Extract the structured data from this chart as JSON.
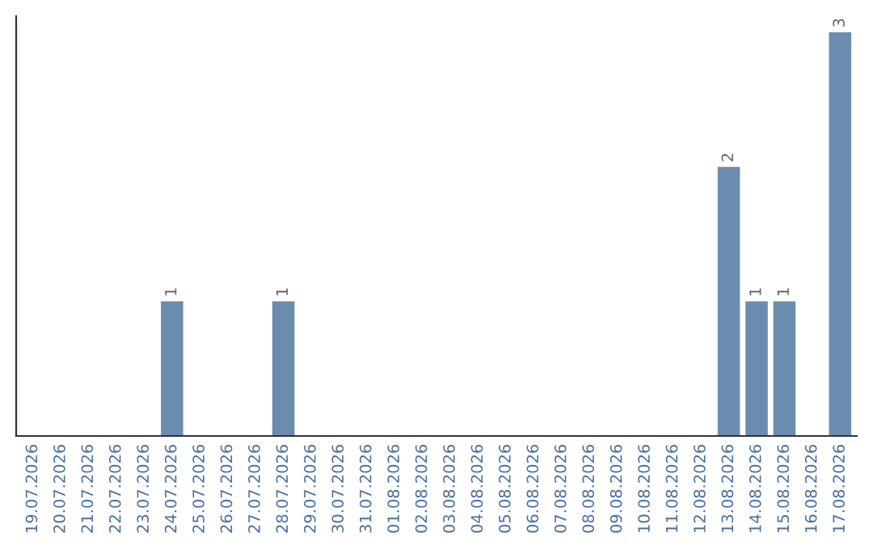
{
  "chart_data": {
    "type": "bar",
    "categories": [
      "19.07.2026",
      "20.07.2026",
      "21.07.2026",
      "22.07.2026",
      "23.07.2026",
      "24.07.2026",
      "25.07.2026",
      "26.07.2026",
      "27.07.2026",
      "28.07.2026",
      "29.07.2026",
      "30.07.2026",
      "31.07.2026",
      "01.08.2026",
      "02.08.2026",
      "03.08.2026",
      "04.08.2026",
      "05.08.2026",
      "06.08.2026",
      "07.08.2026",
      "08.08.2026",
      "09.08.2026",
      "10.08.2026",
      "11.08.2026",
      "12.08.2026",
      "13.08.2026",
      "14.08.2026",
      "15.08.2026",
      "16.08.2026",
      "17.08.2026"
    ],
    "values": [
      0,
      0,
      0,
      0,
      0,
      1,
      0,
      0,
      0,
      1,
      0,
      0,
      0,
      0,
      0,
      0,
      0,
      0,
      0,
      0,
      0,
      0,
      0,
      0,
      0,
      2,
      1,
      1,
      0,
      3
    ],
    "value_labels": [
      null,
      null,
      null,
      null,
      null,
      "1",
      null,
      null,
      null,
      "1",
      null,
      null,
      null,
      null,
      null,
      null,
      null,
      null,
      null,
      null,
      null,
      null,
      null,
      null,
      null,
      "2",
      "1",
      "1",
      null,
      "3"
    ],
    "color": "#6a8caf",
    "grid": false,
    "legend": false,
    "tick_labels": "x"
  }
}
